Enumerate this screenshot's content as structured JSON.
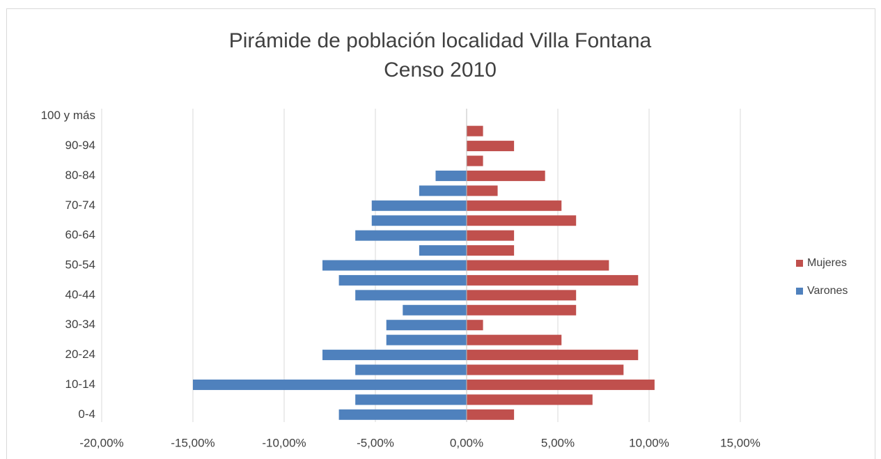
{
  "chart_data": {
    "type": "bar",
    "orientation": "horizontal",
    "title": "Pirámide de población localidad Villa Fontana",
    "subtitle": "Censo 2010",
    "categories": [
      "0-4",
      null,
      "10-14",
      null,
      "20-24",
      null,
      "30-34",
      null,
      "40-44",
      null,
      "50-54",
      null,
      "60-64",
      null,
      "70-74",
      null,
      "80-84",
      null,
      "90-94",
      null,
      "100 y más"
    ],
    "series": [
      {
        "name": "Mujeres",
        "color": "#c0504d",
        "values": [
          2.6,
          6.9,
          10.3,
          8.6,
          9.4,
          5.2,
          0.9,
          6.0,
          6.0,
          9.4,
          7.8,
          2.6,
          2.6,
          6.0,
          5.2,
          1.7,
          4.3,
          0.9,
          2.6,
          0.9,
          0
        ]
      },
      {
        "name": "Varones",
        "color": "#4f81bd",
        "values": [
          -7.0,
          -6.1,
          -15.0,
          -6.1,
          -7.9,
          -4.4,
          -4.4,
          -3.5,
          -6.1,
          -7.0,
          -7.9,
          -2.6,
          -6.1,
          -5.2,
          -5.2,
          -2.6,
          -1.7,
          0,
          0,
          0,
          0
        ]
      }
    ],
    "xlim": [
      -20,
      20
    ],
    "xticks": [
      {
        "value": -20,
        "label": "-20,00%"
      },
      {
        "value": -15,
        "label": "-15,00%"
      },
      {
        "value": -10,
        "label": "-10,00%"
      },
      {
        "value": -5,
        "label": "-5,00%"
      },
      {
        "value": 0,
        "label": "0,00%"
      },
      {
        "value": 5,
        "label": "5,00%"
      },
      {
        "value": 10,
        "label": "10,00%"
      },
      {
        "value": 15,
        "label": "15,00%"
      }
    ],
    "grid": true,
    "legend": "right"
  }
}
